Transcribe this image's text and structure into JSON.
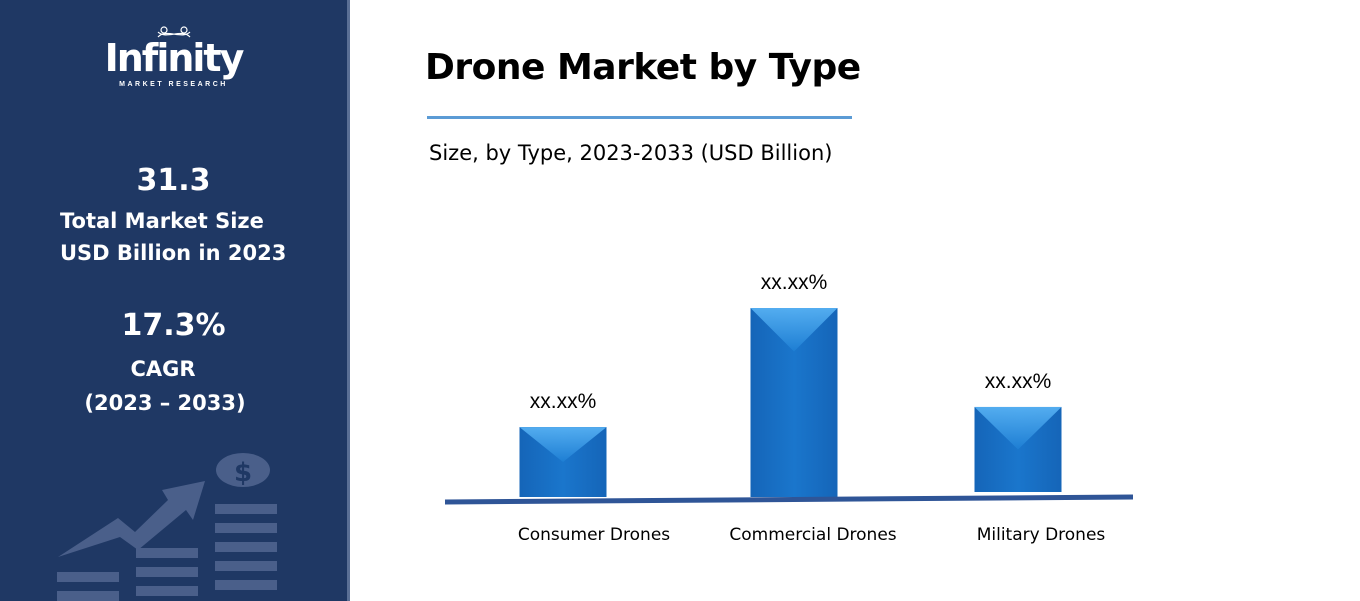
{
  "sidebar": {
    "logo": {
      "name": "Infinity",
      "tagline": "MARKET RESEARCH"
    },
    "market_size": {
      "value": "31.3",
      "label_line1": "Total Market Size",
      "label_line2": "USD Billion in 2023"
    },
    "cagr": {
      "value": "17.3%",
      "label_line1": "CAGR",
      "label_line2": "(2023 – 2033)"
    },
    "decorative_icon": "money-growth-chart-icon",
    "colors": {
      "background": "#1f3864",
      "icon": "#4a5f8a"
    }
  },
  "chart_data": {
    "type": "bar",
    "title": "Drone Market by Type",
    "subtitle": "Size, by Type, 2023-2033 (USD Billion)",
    "categories": [
      "Consumer Drones",
      "Commercial Drones",
      "Military Drones"
    ],
    "values": [
      37,
      100,
      45
    ],
    "value_note": "relative bar heights (unlabeled axis)",
    "data_labels": [
      "xx.xx%",
      "xx.xx%",
      "xx.xx%"
    ],
    "xlabel": "",
    "ylabel": "",
    "grid": false,
    "colors": {
      "bar": "#1a73c8",
      "axis": "#2f5597",
      "title_rule": "#5b9bd5"
    }
  }
}
